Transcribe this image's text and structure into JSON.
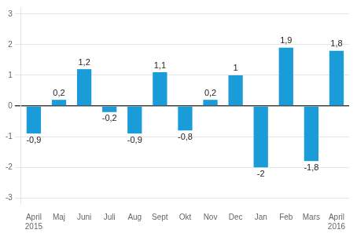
{
  "chart_data": {
    "type": "bar",
    "categories": [
      "April",
      "Maj",
      "Juni",
      "Juli",
      "Aug",
      "Sept",
      "Okt",
      "Nov",
      "Dec",
      "Jan",
      "Feb",
      "Mars",
      "April"
    ],
    "values": [
      -0.9,
      0.2,
      1.2,
      -0.2,
      -0.9,
      1.1,
      -0.8,
      0.2,
      1.0,
      -2.0,
      1.9,
      -1.8,
      1.8
    ],
    "value_labels": [
      "-0,9",
      "0,2",
      "1,2",
      "-0,2",
      "-0,9",
      "1,1",
      "-0,8",
      "0,2",
      "1",
      "-2",
      "1,9",
      "-1,8",
      "1,8"
    ],
    "color": "#1a9cd8",
    "ylim": [
      -3.2,
      3.2
    ],
    "yticks": [
      -3,
      -2,
      -1,
      0,
      1,
      2,
      3
    ],
    "grid": true,
    "data_labels": true,
    "annotations": [
      {
        "text": "2015",
        "x": 0
      },
      {
        "text": "2016",
        "x": 12
      }
    ]
  }
}
